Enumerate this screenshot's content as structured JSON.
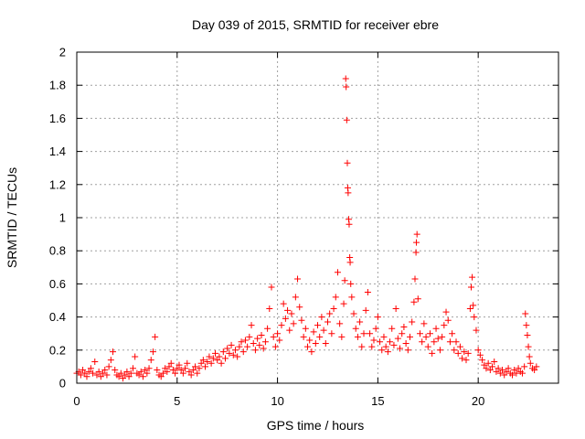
{
  "chart_data": {
    "type": "scatter",
    "title": "Day 039 of 2015, SRMTID for receiver ebre",
    "xlabel": "GPS time / hours",
    "ylabel": "SRMTID / TECUs",
    "xlim": [
      0,
      24
    ],
    "ylim": [
      0,
      2
    ],
    "grid": true,
    "marker": "+",
    "color": "#ff0000",
    "xticks": [
      0,
      5,
      10,
      15,
      20
    ],
    "xtick_labels": [
      "0",
      "5",
      "10",
      "15",
      "20"
    ],
    "yticks": [
      0,
      0.2,
      0.4,
      0.6,
      0.8,
      1,
      1.2,
      1.4,
      1.6,
      1.8,
      2
    ],
    "ytick_labels": [
      "0",
      "0.2",
      "0.4",
      "0.6",
      "0.8",
      "1",
      "1.2",
      "1.4",
      "1.6",
      "1.8",
      "2"
    ],
    "series": [
      {
        "name": "SRMTID",
        "points": [
          [
            0.0,
            0.06
          ],
          [
            0.1,
            0.07
          ],
          [
            0.2,
            0.05
          ],
          [
            0.3,
            0.08
          ],
          [
            0.4,
            0.06
          ],
          [
            0.5,
            0.04
          ],
          [
            0.6,
            0.07
          ],
          [
            0.7,
            0.09
          ],
          [
            0.8,
            0.06
          ],
          [
            0.9,
            0.13
          ],
          [
            1.0,
            0.05
          ],
          [
            1.1,
            0.07
          ],
          [
            1.2,
            0.04
          ],
          [
            1.3,
            0.06
          ],
          [
            1.4,
            0.08
          ],
          [
            1.5,
            0.05
          ],
          [
            1.6,
            0.1
          ],
          [
            1.7,
            0.14
          ],
          [
            1.8,
            0.19
          ],
          [
            1.9,
            0.08
          ],
          [
            2.0,
            0.05
          ],
          [
            2.1,
            0.04
          ],
          [
            2.2,
            0.06
          ],
          [
            2.3,
            0.03
          ],
          [
            2.4,
            0.05
          ],
          [
            2.5,
            0.07
          ],
          [
            2.6,
            0.04
          ],
          [
            2.7,
            0.06
          ],
          [
            2.8,
            0.09
          ],
          [
            2.9,
            0.16
          ],
          [
            3.0,
            0.06
          ],
          [
            3.1,
            0.05
          ],
          [
            3.2,
            0.07
          ],
          [
            3.3,
            0.04
          ],
          [
            3.4,
            0.08
          ],
          [
            3.5,
            0.06
          ],
          [
            3.6,
            0.09
          ],
          [
            3.7,
            0.14
          ],
          [
            3.8,
            0.19
          ],
          [
            3.9,
            0.28
          ],
          [
            4.0,
            0.08
          ],
          [
            4.1,
            0.05
          ],
          [
            4.2,
            0.04
          ],
          [
            4.3,
            0.06
          ],
          [
            4.4,
            0.09
          ],
          [
            4.5,
            0.07
          ],
          [
            4.6,
            0.1
          ],
          [
            4.7,
            0.12
          ],
          [
            4.8,
            0.08
          ],
          [
            4.9,
            0.06
          ],
          [
            5.0,
            0.09
          ],
          [
            5.1,
            0.11
          ],
          [
            5.2,
            0.08
          ],
          [
            5.3,
            0.06
          ],
          [
            5.4,
            0.09
          ],
          [
            5.5,
            0.12
          ],
          [
            5.6,
            0.07
          ],
          [
            5.7,
            0.05
          ],
          [
            5.8,
            0.08
          ],
          [
            5.9,
            0.1
          ],
          [
            6.0,
            0.06
          ],
          [
            6.1,
            0.09
          ],
          [
            6.2,
            0.12
          ],
          [
            6.3,
            0.14
          ],
          [
            6.4,
            0.1
          ],
          [
            6.5,
            0.13
          ],
          [
            6.6,
            0.16
          ],
          [
            6.7,
            0.12
          ],
          [
            6.8,
            0.15
          ],
          [
            6.9,
            0.18
          ],
          [
            7.0,
            0.14
          ],
          [
            7.1,
            0.16
          ],
          [
            7.2,
            0.12
          ],
          [
            7.3,
            0.19
          ],
          [
            7.4,
            0.15
          ],
          [
            7.5,
            0.21
          ],
          [
            7.6,
            0.18
          ],
          [
            7.7,
            0.23
          ],
          [
            7.8,
            0.17
          ],
          [
            7.9,
            0.2
          ],
          [
            8.0,
            0.16
          ],
          [
            8.1,
            0.22
          ],
          [
            8.2,
            0.25
          ],
          [
            8.3,
            0.19
          ],
          [
            8.4,
            0.26
          ],
          [
            8.5,
            0.22
          ],
          [
            8.6,
            0.28
          ],
          [
            8.7,
            0.35
          ],
          [
            8.8,
            0.24
          ],
          [
            8.9,
            0.2
          ],
          [
            9.0,
            0.27
          ],
          [
            9.1,
            0.23
          ],
          [
            9.2,
            0.29
          ],
          [
            9.3,
            0.21
          ],
          [
            9.4,
            0.25
          ],
          [
            9.5,
            0.33
          ],
          [
            9.6,
            0.45
          ],
          [
            9.7,
            0.58
          ],
          [
            9.8,
            0.28
          ],
          [
            9.9,
            0.22
          ],
          [
            10.0,
            0.3
          ],
          [
            10.1,
            0.26
          ],
          [
            10.2,
            0.35
          ],
          [
            10.3,
            0.48
          ],
          [
            10.4,
            0.39
          ],
          [
            10.5,
            0.44
          ],
          [
            10.6,
            0.32
          ],
          [
            10.7,
            0.42
          ],
          [
            10.8,
            0.36
          ],
          [
            10.9,
            0.52
          ],
          [
            11.0,
            0.63
          ],
          [
            11.1,
            0.46
          ],
          [
            11.2,
            0.38
          ],
          [
            11.3,
            0.28
          ],
          [
            11.4,
            0.33
          ],
          [
            11.5,
            0.22
          ],
          [
            11.6,
            0.26
          ],
          [
            11.7,
            0.19
          ],
          [
            11.8,
            0.31
          ],
          [
            11.9,
            0.24
          ],
          [
            12.0,
            0.35
          ],
          [
            12.1,
            0.28
          ],
          [
            12.2,
            0.4
          ],
          [
            12.3,
            0.32
          ],
          [
            12.4,
            0.24
          ],
          [
            12.5,
            0.37
          ],
          [
            12.6,
            0.42
          ],
          [
            12.7,
            0.3
          ],
          [
            12.8,
            0.45
          ],
          [
            12.9,
            0.52
          ],
          [
            13.0,
            0.67
          ],
          [
            13.1,
            0.36
          ],
          [
            13.2,
            0.28
          ],
          [
            13.3,
            0.48
          ],
          [
            13.35,
            0.62
          ],
          [
            13.4,
            1.84
          ],
          [
            13.42,
            1.79
          ],
          [
            13.45,
            1.59
          ],
          [
            13.48,
            1.33
          ],
          [
            13.5,
            1.18
          ],
          [
            13.52,
            1.15
          ],
          [
            13.55,
            0.99
          ],
          [
            13.57,
            0.96
          ],
          [
            13.6,
            0.76
          ],
          [
            13.62,
            0.73
          ],
          [
            13.65,
            0.6
          ],
          [
            13.7,
            0.52
          ],
          [
            13.8,
            0.42
          ],
          [
            13.9,
            0.33
          ],
          [
            14.0,
            0.28
          ],
          [
            14.1,
            0.37
          ],
          [
            14.2,
            0.22
          ],
          [
            14.3,
            0.3
          ],
          [
            14.4,
            0.44
          ],
          [
            14.5,
            0.55
          ],
          [
            14.6,
            0.3
          ],
          [
            14.7,
            0.22
          ],
          [
            14.8,
            0.26
          ],
          [
            14.9,
            0.33
          ],
          [
            15.0,
            0.4
          ],
          [
            15.1,
            0.25
          ],
          [
            15.2,
            0.2
          ],
          [
            15.3,
            0.28
          ],
          [
            15.4,
            0.22
          ],
          [
            15.5,
            0.19
          ],
          [
            15.6,
            0.25
          ],
          [
            15.7,
            0.33
          ],
          [
            15.8,
            0.23
          ],
          [
            15.9,
            0.45
          ],
          [
            16.0,
            0.27
          ],
          [
            16.1,
            0.21
          ],
          [
            16.2,
            0.3
          ],
          [
            16.3,
            0.34
          ],
          [
            16.4,
            0.24
          ],
          [
            16.5,
            0.2
          ],
          [
            16.6,
            0.28
          ],
          [
            16.7,
            0.37
          ],
          [
            16.8,
            0.49
          ],
          [
            16.85,
            0.63
          ],
          [
            16.9,
            0.79
          ],
          [
            16.92,
            0.85
          ],
          [
            16.95,
            0.9
          ],
          [
            17.0,
            0.51
          ],
          [
            17.1,
            0.3
          ],
          [
            17.2,
            0.25
          ],
          [
            17.3,
            0.36
          ],
          [
            17.4,
            0.28
          ],
          [
            17.5,
            0.22
          ],
          [
            17.6,
            0.3
          ],
          [
            17.7,
            0.18
          ],
          [
            17.8,
            0.25
          ],
          [
            17.9,
            0.33
          ],
          [
            18.0,
            0.27
          ],
          [
            18.1,
            0.2
          ],
          [
            18.2,
            0.28
          ],
          [
            18.3,
            0.35
          ],
          [
            18.4,
            0.43
          ],
          [
            18.5,
            0.38
          ],
          [
            18.6,
            0.25
          ],
          [
            18.7,
            0.3
          ],
          [
            18.8,
            0.2
          ],
          [
            18.9,
            0.25
          ],
          [
            19.0,
            0.18
          ],
          [
            19.1,
            0.22
          ],
          [
            19.2,
            0.15
          ],
          [
            19.3,
            0.19
          ],
          [
            19.4,
            0.14
          ],
          [
            19.5,
            0.18
          ],
          [
            19.6,
            0.45
          ],
          [
            19.65,
            0.58
          ],
          [
            19.7,
            0.64
          ],
          [
            19.75,
            0.47
          ],
          [
            19.8,
            0.4
          ],
          [
            19.9,
            0.32
          ],
          [
            20.0,
            0.2
          ],
          [
            20.1,
            0.17
          ],
          [
            20.2,
            0.14
          ],
          [
            20.3,
            0.11
          ],
          [
            20.4,
            0.09
          ],
          [
            20.5,
            0.12
          ],
          [
            20.6,
            0.08
          ],
          [
            20.7,
            0.1
          ],
          [
            20.8,
            0.13
          ],
          [
            20.9,
            0.07
          ],
          [
            21.0,
            0.09
          ],
          [
            21.1,
            0.06
          ],
          [
            21.2,
            0.08
          ],
          [
            21.3,
            0.05
          ],
          [
            21.4,
            0.07
          ],
          [
            21.5,
            0.09
          ],
          [
            21.6,
            0.06
          ],
          [
            21.7,
            0.05
          ],
          [
            21.8,
            0.08
          ],
          [
            21.9,
            0.06
          ],
          [
            22.0,
            0.09
          ],
          [
            22.1,
            0.07
          ],
          [
            22.2,
            0.06
          ],
          [
            22.3,
            0.1
          ],
          [
            22.35,
            0.42
          ],
          [
            22.4,
            0.35
          ],
          [
            22.45,
            0.29
          ],
          [
            22.5,
            0.22
          ],
          [
            22.55,
            0.16
          ],
          [
            22.6,
            0.12
          ],
          [
            22.7,
            0.09
          ],
          [
            22.8,
            0.08
          ],
          [
            22.9,
            0.1
          ]
        ]
      }
    ]
  }
}
